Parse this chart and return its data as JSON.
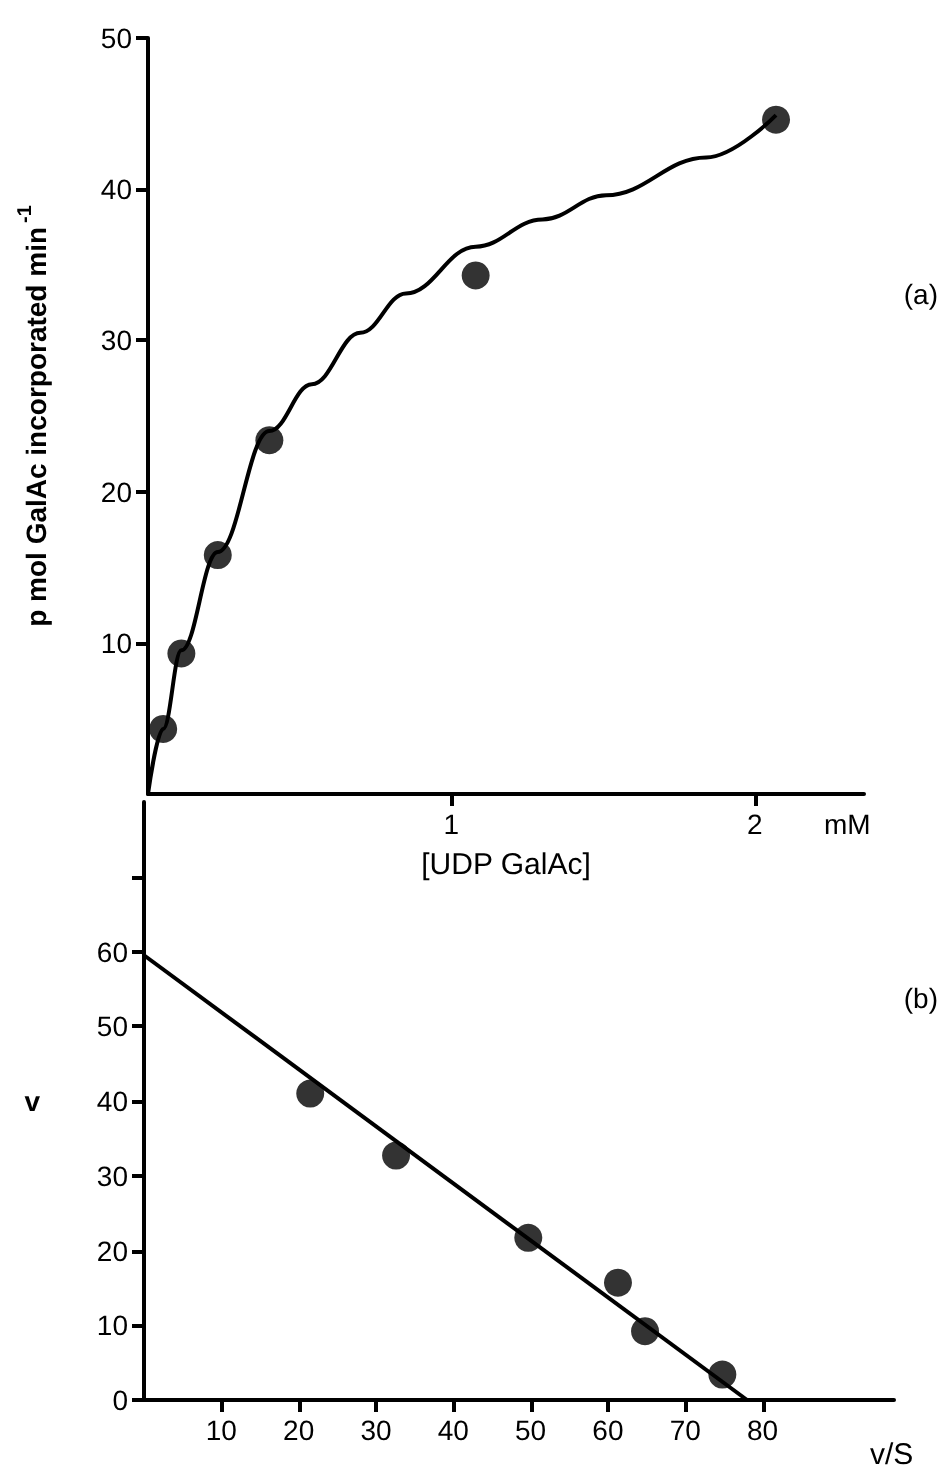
{
  "chart_data": [
    {
      "type": "scatter",
      "xlabel": "[UDP GalAc]",
      "ylabel": "p mol GalAc incorporated min$^{-1}$",
      "annotations": [
        "mM",
        "(a)"
      ],
      "series": [
        {
          "color": "#000000",
          "x": [
            0.05,
            0.11,
            0.23,
            0.4,
            1.08,
            2.07
          ],
          "values": [
            4.3,
            9.3,
            15.8,
            23.4,
            34.3,
            44.6
          ],
          "marker": "circle"
        },
        {
          "type": "line",
          "color": "#000000",
          "x": [
            0,
            0.05,
            0.11,
            0.23,
            0.4,
            0.54,
            0.7,
            0.85,
            1.08,
            1.3,
            1.51,
            1.84,
            2.07
          ],
          "values": [
            0,
            4.3,
            9.5,
            16,
            24,
            27.1,
            30.5,
            33.1,
            36.2,
            38,
            39.6,
            42.1,
            44.9
          ],
          "marker": "none",
          "line_style": "solid"
        }
      ],
      "xlim": [
        0,
        2.36
      ],
      "xticks": [
        1,
        2
      ],
      "ylim": [
        0,
        50
      ],
      "yticks": [
        10,
        20,
        30,
        40,
        50
      ],
      "grid": false
    },
    {
      "type": "scatter",
      "xlabel": "v/S",
      "ylabel": "v",
      "annotations": [
        "(b)"
      ],
      "series": [
        {
          "color": "#000000",
          "x": [
            21.5,
            32.6,
            49.7,
            61.3,
            64.8,
            74.8
          ],
          "values": [
            41,
            32.7,
            21.7,
            15.7,
            9.2,
            3.4
          ],
          "marker": "circle"
        },
        {
          "type": "line",
          "color": "#000000",
          "x": [
            0,
            78
          ],
          "values": [
            59.5,
            0
          ],
          "marker": "none",
          "line_style": "solid"
        }
      ],
      "xlim": [
        0,
        97
      ],
      "xticks": [
        10,
        20,
        30,
        40,
        50,
        60,
        70,
        80
      ],
      "ylim": [
        0,
        80
      ],
      "yticks": [
        0,
        10,
        20,
        30,
        40,
        50,
        60,
        {
          "value": 70,
          "label": null
        }
      ],
      "grid": false
    }
  ]
}
